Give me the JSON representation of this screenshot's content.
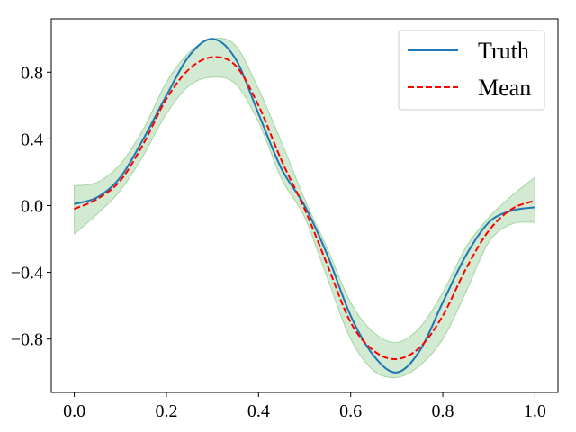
{
  "chart_data": {
    "type": "line",
    "title": "",
    "xlabel": "",
    "ylabel": "",
    "xlim": [
      -0.05,
      1.05
    ],
    "ylim": [
      -1.12,
      1.12
    ],
    "xticks": [
      0.0,
      0.2,
      0.4,
      0.6,
      0.8,
      1.0
    ],
    "xtick_labels": [
      "0.0",
      "0.2",
      "0.4",
      "0.6",
      "0.8",
      "1.0"
    ],
    "yticks": [
      -0.8,
      -0.4,
      0.0,
      0.4,
      0.8
    ],
    "ytick_labels": [
      "−0.8",
      "−0.4",
      "0.0",
      "0.4",
      "0.8"
    ],
    "grid": false,
    "legend_position": "top-right",
    "x": [
      0.0,
      0.05,
      0.1,
      0.15,
      0.2,
      0.25,
      0.3,
      0.35,
      0.4,
      0.45,
      0.5,
      0.55,
      0.6,
      0.65,
      0.7,
      0.75,
      0.8,
      0.85,
      0.9,
      0.95,
      1.0
    ],
    "series": [
      {
        "name": "Truth",
        "style": "solid",
        "color": "#1f77b4",
        "values": [
          0.01,
          0.05,
          0.17,
          0.4,
          0.66,
          0.9,
          1.0,
          0.88,
          0.55,
          0.22,
          0.0,
          -0.3,
          -0.66,
          -0.9,
          -1.0,
          -0.87,
          -0.58,
          -0.3,
          -0.1,
          -0.03,
          -0.01
        ]
      },
      {
        "name": "Mean",
        "style": "dashed",
        "color": "#ff0000",
        "values": [
          -0.02,
          0.04,
          0.15,
          0.37,
          0.64,
          0.82,
          0.89,
          0.84,
          0.6,
          0.27,
          -0.02,
          -0.36,
          -0.7,
          -0.87,
          -0.92,
          -0.85,
          -0.66,
          -0.38,
          -0.15,
          -0.02,
          0.03
        ]
      }
    ],
    "band": {
      "color": "#2ca02c",
      "opacity": 0.22,
      "lower": [
        -0.17,
        -0.05,
        0.09,
        0.3,
        0.55,
        0.72,
        0.77,
        0.73,
        0.5,
        0.16,
        -0.07,
        -0.44,
        -0.8,
        -0.99,
        -1.03,
        -0.96,
        -0.8,
        -0.52,
        -0.22,
        -0.11,
        -0.1
      ],
      "upper": [
        0.12,
        0.14,
        0.25,
        0.46,
        0.74,
        0.92,
        1.0,
        0.96,
        0.7,
        0.38,
        0.04,
        -0.26,
        -0.58,
        -0.76,
        -0.82,
        -0.73,
        -0.52,
        -0.25,
        -0.07,
        0.06,
        0.17
      ]
    }
  }
}
